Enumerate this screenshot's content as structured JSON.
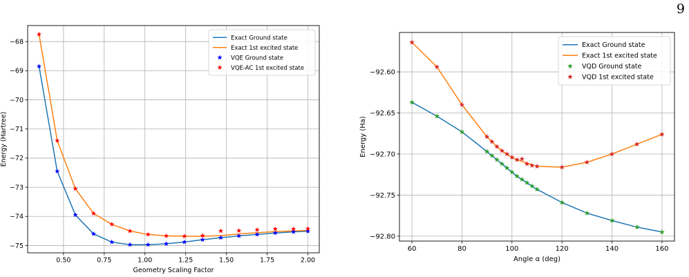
{
  "page_number": "9",
  "colors": {
    "exact_ground": "#1f77b4",
    "exact_excited": "#ff7f0e",
    "vqe_ground_marker": "#0000ff",
    "excited_marker": "#ff0000",
    "vqd_ground_marker": "#2ca02c",
    "vqd_excited_marker": "#d62728",
    "grid": "#b0b0b0"
  },
  "chart_data": [
    {
      "type": "line",
      "title": "",
      "xlabel": "Geometry Scaling Factor",
      "ylabel": "Energy (Hartree)",
      "xlim": [
        0.28,
        2.07
      ],
      "ylim": [
        -75.25,
        -67.45
      ],
      "xticks": [
        0.5,
        0.75,
        1.0,
        1.25,
        1.5,
        1.75,
        2.0
      ],
      "xtick_labels": [
        "0.50",
        "0.75",
        "1.00",
        "1.25",
        "1.50",
        "1.75",
        "2.00"
      ],
      "yticks": [
        -75,
        -74,
        -73,
        -72,
        -71,
        -70,
        -69,
        -68
      ],
      "ytick_labels": [
        "−75",
        "−74",
        "−73",
        "−72",
        "−71",
        "−70",
        "−69",
        "−68"
      ],
      "grid": true,
      "legend_position": "top-right",
      "x": [
        0.35,
        0.4615,
        0.5731,
        0.6846,
        0.7962,
        0.9077,
        1.0192,
        1.1308,
        1.2423,
        1.3538,
        1.4654,
        1.5769,
        1.6885,
        1.8,
        1.9115,
        2.0
      ],
      "series": [
        {
          "name": "Exact Ground state",
          "kind": "line",
          "color": "#1f77b4",
          "values": [
            -68.85,
            -72.45,
            -73.95,
            -74.6,
            -74.88,
            -74.97,
            -74.97,
            -74.94,
            -74.88,
            -74.8,
            -74.73,
            -74.67,
            -74.62,
            -74.57,
            -74.53,
            -74.51
          ]
        },
        {
          "name": "Exact 1st excited state",
          "kind": "line",
          "color": "#ff7f0e",
          "values": [
            -67.75,
            -71.4,
            -73.05,
            -73.9,
            -74.27,
            -74.5,
            -74.62,
            -74.67,
            -74.68,
            -74.68,
            -74.66,
            -74.6,
            -74.56,
            -74.52,
            -74.5,
            -74.48
          ]
        },
        {
          "name": "VQE Ground state",
          "kind": "marker",
          "color": "#0000ff",
          "values": [
            -68.85,
            -72.45,
            -73.95,
            -74.6,
            -74.88,
            -74.97,
            -74.97,
            -74.94,
            -74.88,
            -74.8,
            -74.73,
            -74.67,
            -74.62,
            -74.57,
            -74.53,
            -74.51
          ]
        },
        {
          "name": "VQE-AC 1st excited state",
          "kind": "marker",
          "color": "#ff0000",
          "values": [
            -67.75,
            -71.4,
            -73.05,
            -73.9,
            -74.27,
            -74.5,
            -74.62,
            -74.67,
            -74.68,
            -74.66,
            -74.5,
            -74.49,
            -74.46,
            -74.43,
            -74.43,
            -74.42
          ]
        }
      ]
    },
    {
      "type": "line",
      "title": "",
      "xlabel": "Angle α (deg)",
      "ylabel": "Energy (Ha)",
      "xlim": [
        55,
        165
      ],
      "ylim": [
        -92.806,
        -92.552
      ],
      "xticks": [
        60,
        80,
        100,
        120,
        140,
        160
      ],
      "xtick_labels": [
        "60",
        "80",
        "100",
        "120",
        "140",
        "160"
      ],
      "yticks": [
        -92.8,
        -92.75,
        -92.7,
        -92.65,
        -92.6
      ],
      "ytick_labels": [
        "−92.80",
        "−92.75",
        "−92.70",
        "−92.65",
        "−92.60"
      ],
      "grid": true,
      "legend_position": "top-right",
      "x": [
        60,
        70,
        80,
        90,
        92,
        94,
        96,
        98,
        100,
        102,
        104,
        106,
        108,
        110,
        120,
        130,
        140,
        150,
        160
      ],
      "series": [
        {
          "name": "Exact Ground state",
          "kind": "line",
          "color": "#1f77b4",
          "values": [
            -92.637,
            -92.654,
            -92.673,
            -92.697,
            -92.702,
            -92.707,
            -92.712,
            -92.717,
            -92.722,
            -92.727,
            -92.731,
            -92.735,
            -92.739,
            -92.743,
            -92.759,
            -92.772,
            -92.781,
            -92.789,
            -92.795
          ]
        },
        {
          "name": "Exact 1st excited state",
          "kind": "line",
          "color": "#ff7f0e",
          "values": [
            -92.564,
            -92.594,
            -92.64,
            -92.679,
            -92.685,
            -92.691,
            -92.696,
            -92.7,
            -92.704,
            -92.707,
            -92.709,
            -92.711,
            -92.713,
            -92.715,
            -92.716,
            -92.71,
            -92.7,
            -92.688,
            -92.676
          ]
        },
        {
          "name": "VQD Ground state",
          "kind": "marker",
          "color": "#2ca02c",
          "values": [
            -92.637,
            -92.654,
            -92.673,
            -92.697,
            -92.702,
            -92.707,
            -92.712,
            -92.717,
            -92.722,
            -92.727,
            -92.731,
            -92.735,
            -92.739,
            -92.743,
            -92.759,
            -92.772,
            -92.781,
            -92.789,
            -92.795
          ]
        },
        {
          "name": "VQD 1st excited state",
          "kind": "marker",
          "color": "#d62728",
          "values": [
            -92.564,
            -92.594,
            -92.64,
            -92.679,
            -92.685,
            -92.691,
            -92.696,
            -92.7,
            -92.704,
            -92.707,
            -92.706,
            -92.712,
            -92.714,
            -92.715,
            -92.716,
            -92.71,
            -92.7,
            -92.688,
            -92.676
          ]
        }
      ]
    }
  ]
}
